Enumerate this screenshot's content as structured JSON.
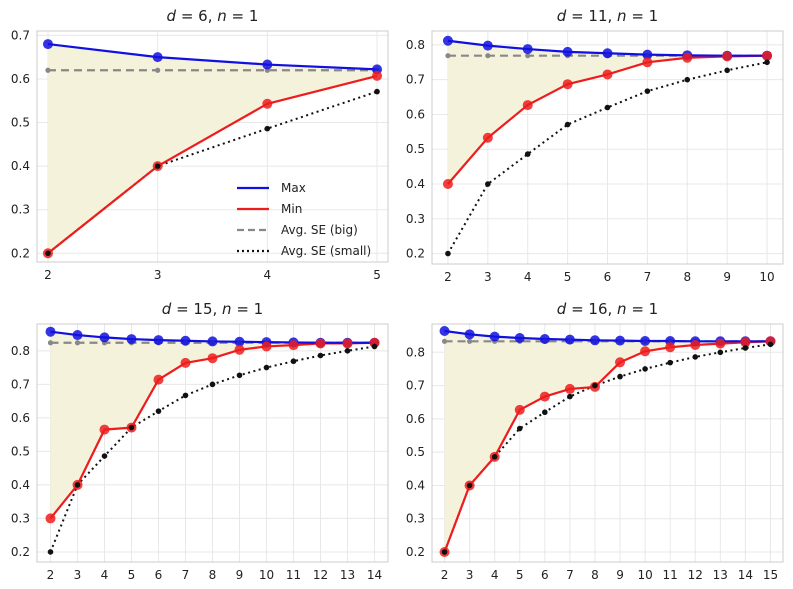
{
  "colors": {
    "max": "#1010e0",
    "min": "#ee1c1c",
    "big": "#888888",
    "small": "#111111",
    "fill": "#f5f2dc",
    "grid": "#e8e8e8",
    "frame": "#cccccc"
  },
  "legend": {
    "items": [
      {
        "key": "max",
        "label": "Max",
        "style": "solid",
        "color": "#1010e0"
      },
      {
        "key": "min",
        "label": "Min",
        "style": "solid",
        "color": "#ee1c1c"
      },
      {
        "key": "big",
        "label": "Avg. SE (big)",
        "style": "dashed",
        "color": "#888888"
      },
      {
        "key": "small",
        "label": "Avg. SE (small)",
        "style": "dotted",
        "color": "#111111"
      }
    ]
  },
  "chart_data": [
    {
      "type": "line",
      "title_prefix": "d",
      "title_mid": " = 6, ",
      "title_n": "n",
      "title_suffix": " = 1",
      "x": [
        2,
        3,
        4,
        5
      ],
      "xlim": [
        1.9,
        5.1
      ],
      "ylim": [
        0.18,
        0.71
      ],
      "yticks": [
        "0.2",
        "0.3",
        "0.4",
        "0.5",
        "0.6",
        "0.7"
      ],
      "xticks": [
        "2",
        "3",
        "4",
        "5"
      ],
      "series": [
        {
          "name": "Max",
          "values": [
            0.68,
            0.65,
            0.633,
            0.622
          ]
        },
        {
          "name": "Min",
          "values": [
            0.2,
            0.4,
            0.543,
            0.607
          ]
        },
        {
          "name": "Avg. SE (big)",
          "values": [
            0.62,
            0.62,
            0.62,
            0.62
          ]
        },
        {
          "name": "Avg. SE (small)",
          "values": [
            0.2,
            0.4,
            0.486,
            0.571
          ]
        }
      ]
    },
    {
      "type": "line",
      "title_prefix": "d",
      "title_mid": " = 11, ",
      "title_n": "n",
      "title_suffix": " = 1",
      "x": [
        2,
        3,
        4,
        5,
        6,
        7,
        8,
        9,
        10
      ],
      "xlim": [
        1.6,
        10.4
      ],
      "ylim": [
        0.17,
        0.84
      ],
      "yticks": [
        "0.2",
        "0.3",
        "0.4",
        "0.5",
        "0.6",
        "0.7",
        "0.8"
      ],
      "xticks": [
        "2",
        "3",
        "4",
        "5",
        "6",
        "7",
        "8",
        "9",
        "10"
      ],
      "series": [
        {
          "name": "Max",
          "values": [
            0.812,
            0.798,
            0.788,
            0.78,
            0.776,
            0.772,
            0.77,
            0.769,
            0.769
          ]
        },
        {
          "name": "Min",
          "values": [
            0.4,
            0.533,
            0.627,
            0.687,
            0.715,
            0.75,
            0.763,
            0.767,
            0.769
          ]
        },
        {
          "name": "Avg. SE (big)",
          "values": [
            0.769,
            0.769,
            0.769,
            0.769,
            0.769,
            0.769,
            0.769,
            0.769,
            0.769
          ]
        },
        {
          "name": "Avg. SE (small)",
          "values": [
            0.2,
            0.4,
            0.486,
            0.571,
            0.62,
            0.667,
            0.7,
            0.727,
            0.75
          ]
        }
      ]
    },
    {
      "type": "line",
      "title_prefix": "d",
      "title_mid": " = 15, ",
      "title_n": "n",
      "title_suffix": " = 1",
      "x": [
        2,
        3,
        4,
        5,
        6,
        7,
        8,
        9,
        10,
        11,
        12,
        13,
        14
      ],
      "xlim": [
        1.5,
        14.5
      ],
      "ylim": [
        0.17,
        0.88
      ],
      "yticks": [
        "0.2",
        "0.3",
        "0.4",
        "0.5",
        "0.6",
        "0.7",
        "0.8"
      ],
      "xticks": [
        "2",
        "3",
        "4",
        "5",
        "6",
        "7",
        "8",
        "9",
        "10",
        "11",
        "12",
        "13",
        "14"
      ],
      "series": [
        {
          "name": "Max",
          "values": [
            0.857,
            0.847,
            0.84,
            0.835,
            0.832,
            0.83,
            0.828,
            0.827,
            0.826,
            0.825,
            0.824,
            0.824,
            0.824
          ]
        },
        {
          "name": "Min",
          "values": [
            0.3,
            0.4,
            0.565,
            0.571,
            0.714,
            0.764,
            0.778,
            0.803,
            0.813,
            0.817,
            0.822,
            0.822,
            0.824
          ]
        },
        {
          "name": "Avg. SE (big)",
          "values": [
            0.824,
            0.824,
            0.824,
            0.824,
            0.824,
            0.824,
            0.824,
            0.824,
            0.824,
            0.824,
            0.824,
            0.824,
            0.824
          ]
        },
        {
          "name": "Avg. SE (small)",
          "values": [
            0.2,
            0.4,
            0.486,
            0.571,
            0.62,
            0.667,
            0.7,
            0.727,
            0.75,
            0.769,
            0.786,
            0.8,
            0.813
          ]
        }
      ]
    },
    {
      "type": "line",
      "title_prefix": "d",
      "title_mid": " = 16, ",
      "title_n": "n",
      "title_suffix": " = 1",
      "x": [
        2,
        3,
        4,
        5,
        6,
        7,
        8,
        9,
        10,
        11,
        12,
        13,
        14,
        15
      ],
      "xlim": [
        1.5,
        15.5
      ],
      "ylim": [
        0.17,
        0.885
      ],
      "yticks": [
        "0.2",
        "0.3",
        "0.4",
        "0.5",
        "0.6",
        "0.7",
        "0.8"
      ],
      "xticks": [
        "2",
        "3",
        "4",
        "5",
        "6",
        "7",
        "8",
        "9",
        "10",
        "11",
        "12",
        "13",
        "14",
        "15"
      ],
      "series": [
        {
          "name": "Max",
          "values": [
            0.864,
            0.854,
            0.847,
            0.843,
            0.84,
            0.838,
            0.836,
            0.835,
            0.834,
            0.834,
            0.833,
            0.833,
            0.833,
            0.833
          ]
        },
        {
          "name": "Min",
          "values": [
            0.2,
            0.4,
            0.486,
            0.627,
            0.667,
            0.69,
            0.696,
            0.77,
            0.803,
            0.815,
            0.822,
            0.826,
            0.83,
            0.833
          ]
        },
        {
          "name": "Avg. SE (big)",
          "values": [
            0.833,
            0.833,
            0.833,
            0.833,
            0.833,
            0.833,
            0.833,
            0.833,
            0.833,
            0.833,
            0.833,
            0.833,
            0.833,
            0.833
          ]
        },
        {
          "name": "Avg. SE (small)",
          "values": [
            0.2,
            0.4,
            0.486,
            0.571,
            0.62,
            0.667,
            0.7,
            0.727,
            0.75,
            0.769,
            0.786,
            0.8,
            0.813,
            0.824
          ]
        }
      ]
    }
  ]
}
